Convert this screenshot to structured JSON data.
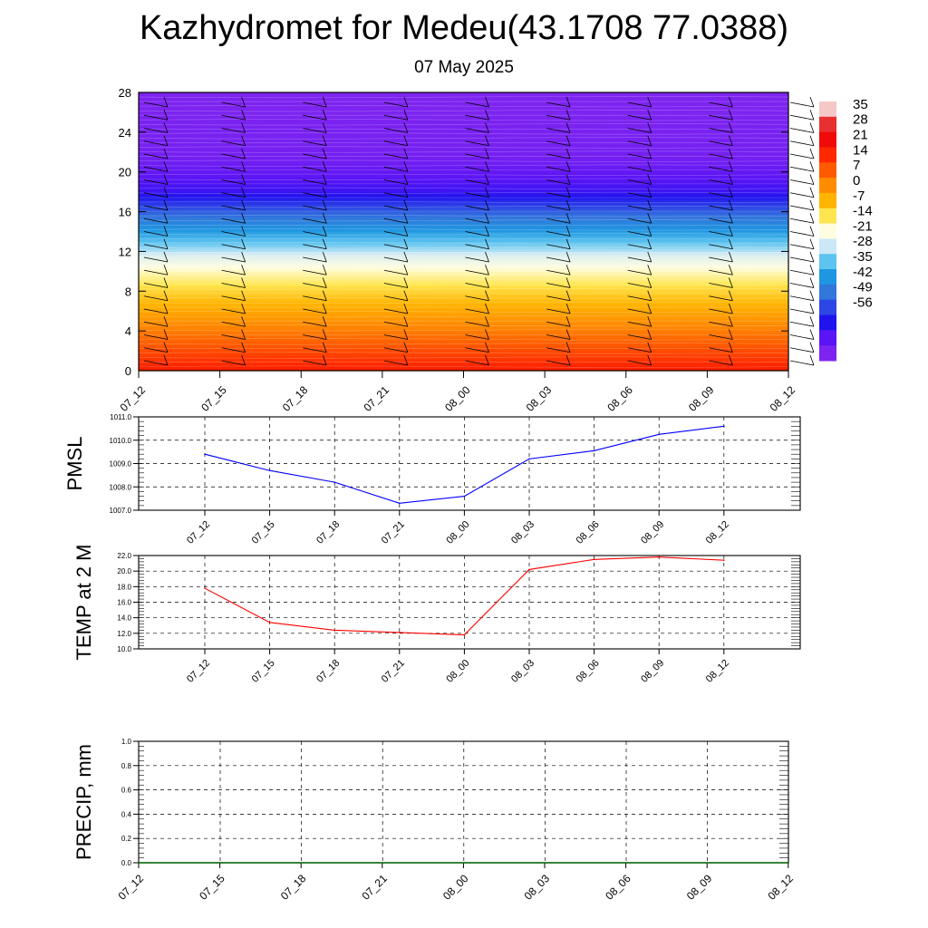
{
  "header": {
    "title": "Kazhydromet for Medeu(43.1708 77.0388)",
    "subtitle": "07 May 2025"
  },
  "chart_data": [
    {
      "type": "heatmap",
      "title": "",
      "time_labels": [
        "07_12",
        "07_15",
        "07_18",
        "07_21",
        "08_00",
        "08_03",
        "08_06",
        "08_09",
        "08_12"
      ],
      "y_ticks": [
        "0",
        "4",
        "8",
        "12",
        "16",
        "20",
        "24",
        "28"
      ],
      "ylim": [
        0,
        28
      ],
      "colorbar_labels": [
        "35",
        "28",
        "21",
        "14",
        "7",
        "0",
        "-7",
        "-14",
        "-21",
        "-28",
        "-35",
        "-42",
        "-49",
        "-56"
      ],
      "colorbar_colors": [
        "#f5c8c8",
        "#e83030",
        "#f00a0a",
        "#ff2800",
        "#ff5a00",
        "#ff8c00",
        "#ffb400",
        "#ffe650",
        "#fffde0",
        "#cbe8f6",
        "#5dc4ef",
        "#1e96e1",
        "#3278dc",
        "#2d46e6",
        "#2014ee",
        "#5a14f5",
        "#7d24f0"
      ],
      "temperature_by_level": [
        {
          "level": 0,
          "value": 22
        },
        {
          "level": 2,
          "value": 16
        },
        {
          "level": 4,
          "value": 10
        },
        {
          "level": 6,
          "value": 4
        },
        {
          "level": 8,
          "value": -2
        },
        {
          "level": 10,
          "value": -9
        },
        {
          "level": 11.7,
          "value": -15
        },
        {
          "level": 12.2,
          "value": -19
        },
        {
          "level": 14,
          "value": -28
        },
        {
          "level": 16,
          "value": -38
        },
        {
          "level": 18,
          "value": -50
        },
        {
          "level": 20,
          "value": -55
        },
        {
          "level": 21.5,
          "value": -58
        },
        {
          "level": 28,
          "value": -60
        }
      ]
    },
    {
      "type": "line",
      "ylabel": "PMSL",
      "ylim": [
        1007.0,
        1011.0
      ],
      "y_ticks": [
        "1007.0",
        "1008.0",
        "1009.0",
        "1010.0",
        "1011.0"
      ],
      "categories": [
        "07_12",
        "07_15",
        "07_18",
        "07_21",
        "08_00",
        "08_03",
        "08_06",
        "08_09",
        "08_12"
      ],
      "series": [
        {
          "values": [
            1009.4,
            1008.7,
            1008.2,
            1007.3,
            1007.6,
            1009.2,
            1009.55,
            1010.25,
            1010.6
          ],
          "color": "#0000ff"
        }
      ]
    },
    {
      "type": "line",
      "ylabel": "TEMP at 2 M",
      "ylim": [
        10.0,
        22.0
      ],
      "y_ticks": [
        "10.0",
        "12.0",
        "14.0",
        "16.0",
        "18.0",
        "20.0",
        "22.0"
      ],
      "categories": [
        "07_12",
        "07_15",
        "07_18",
        "07_21",
        "08_00",
        "08_03",
        "08_06",
        "08_09",
        "08_12"
      ],
      "series": [
        {
          "values": [
            17.8,
            13.4,
            12.4,
            12.1,
            11.8,
            20.2,
            21.5,
            21.8,
            21.4
          ],
          "color": "#ff0000"
        }
      ]
    },
    {
      "type": "line",
      "ylabel": "PRECIP, mm",
      "ylim": [
        0.0,
        1.0
      ],
      "y_ticks": [
        "0.0",
        "0.2",
        "0.4",
        "0.6",
        "0.8",
        "1.0"
      ],
      "categories": [
        "07_12",
        "07_15",
        "07_18",
        "07_21",
        "08_00",
        "08_03",
        "08_06",
        "08_09",
        "08_12"
      ],
      "series": [
        {
          "values": [
            0,
            0,
            0,
            0,
            0,
            0,
            0,
            0,
            0
          ],
          "color": "#006400"
        }
      ]
    }
  ]
}
